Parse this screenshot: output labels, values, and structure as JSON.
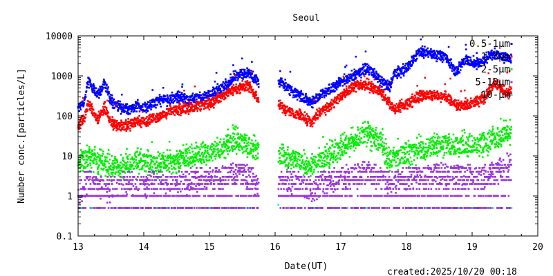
{
  "chart_data": {
    "type": "scatter",
    "title": "Seoul",
    "xlabel": "Date(UT)",
    "ylabel": "Number conc.[particles/L]",
    "xlim": [
      13,
      20
    ],
    "ylim": [
      0.1,
      10000
    ],
    "yscale": "log",
    "x_ticks": [
      13,
      14,
      15,
      16,
      17,
      18,
      19,
      20
    ],
    "y_ticks": [
      {
        "value": 0.1,
        "label": "0.1"
      },
      {
        "value": 1,
        "label": "1"
      },
      {
        "value": 10,
        "label": "10"
      },
      {
        "value": 100,
        "label": "100"
      },
      {
        "value": 1000,
        "label": "1000"
      },
      {
        "value": 10000,
        "label": "10000"
      }
    ],
    "legend_position": "top-right",
    "gaps": [
      [
        15.75,
        16.05
      ]
    ],
    "series": [
      {
        "name": "0.5-1μm",
        "color": "#0000ff",
        "points": [
          [
            13.0,
            150
          ],
          [
            13.1,
            250
          ],
          [
            13.15,
            800
          ],
          [
            13.2,
            600
          ],
          [
            13.3,
            300
          ],
          [
            13.4,
            700
          ],
          [
            13.5,
            250
          ],
          [
            13.6,
            170
          ],
          [
            13.8,
            140
          ],
          [
            13.9,
            180
          ],
          [
            14.0,
            160
          ],
          [
            14.1,
            200
          ],
          [
            14.2,
            230
          ],
          [
            14.3,
            250
          ],
          [
            14.4,
            260
          ],
          [
            14.5,
            300
          ],
          [
            14.7,
            250
          ],
          [
            14.9,
            300
          ],
          [
            15.0,
            350
          ],
          [
            15.2,
            500
          ],
          [
            15.4,
            1000
          ],
          [
            15.6,
            1200
          ],
          [
            15.75,
            700
          ],
          [
            16.05,
            800
          ],
          [
            16.2,
            500
          ],
          [
            16.4,
            300
          ],
          [
            16.55,
            200
          ],
          [
            16.7,
            350
          ],
          [
            16.9,
            500
          ],
          [
            17.0,
            700
          ],
          [
            17.2,
            1000
          ],
          [
            17.4,
            1600
          ],
          [
            17.6,
            800
          ],
          [
            17.75,
            500
          ],
          [
            17.8,
            1100
          ],
          [
            18.0,
            1500
          ],
          [
            18.2,
            4000
          ],
          [
            18.4,
            3500
          ],
          [
            18.6,
            3000
          ],
          [
            18.75,
            1200
          ],
          [
            18.9,
            2500
          ],
          [
            19.1,
            2000
          ],
          [
            19.3,
            3500
          ],
          [
            19.5,
            3000
          ],
          [
            19.6,
            2800
          ]
        ]
      },
      {
        "name": "1-3μm",
        "color": "#ff0000",
        "points": [
          [
            13.0,
            60
          ],
          [
            13.1,
            90
          ],
          [
            13.15,
            200
          ],
          [
            13.2,
            150
          ],
          [
            13.3,
            80
          ],
          [
            13.4,
            170
          ],
          [
            13.5,
            70
          ],
          [
            13.6,
            55
          ],
          [
            13.8,
            60
          ],
          [
            13.9,
            75
          ],
          [
            14.0,
            70
          ],
          [
            14.1,
            85
          ],
          [
            14.2,
            90
          ],
          [
            14.3,
            100
          ],
          [
            14.4,
            140
          ],
          [
            14.6,
            150
          ],
          [
            14.8,
            170
          ],
          [
            15.0,
            200
          ],
          [
            15.2,
            300
          ],
          [
            15.4,
            500
          ],
          [
            15.6,
            550
          ],
          [
            15.75,
            250
          ],
          [
            16.05,
            200
          ],
          [
            16.2,
            130
          ],
          [
            16.4,
            100
          ],
          [
            16.55,
            70
          ],
          [
            16.7,
            130
          ],
          [
            16.9,
            200
          ],
          [
            17.0,
            300
          ],
          [
            17.2,
            550
          ],
          [
            17.4,
            600
          ],
          [
            17.6,
            400
          ],
          [
            17.75,
            200
          ],
          [
            17.8,
            150
          ],
          [
            18.0,
            200
          ],
          [
            18.2,
            300
          ],
          [
            18.4,
            350
          ],
          [
            18.6,
            300
          ],
          [
            18.8,
            170
          ],
          [
            19.0,
            200
          ],
          [
            19.2,
            300
          ],
          [
            19.35,
            650
          ],
          [
            19.5,
            400
          ],
          [
            19.6,
            380
          ]
        ]
      },
      {
        "name": "2-5μm",
        "color": "#00ee00",
        "points": [
          [
            13.0,
            6
          ],
          [
            13.1,
            8
          ],
          [
            13.2,
            10
          ],
          [
            13.3,
            7
          ],
          [
            13.5,
            5
          ],
          [
            13.7,
            6
          ],
          [
            13.9,
            8
          ],
          [
            14.0,
            7
          ],
          [
            14.2,
            6
          ],
          [
            14.4,
            7
          ],
          [
            14.6,
            9
          ],
          [
            14.8,
            10
          ],
          [
            15.0,
            12
          ],
          [
            15.2,
            18
          ],
          [
            15.4,
            25
          ],
          [
            15.6,
            18
          ],
          [
            15.75,
            13
          ],
          [
            16.05,
            11
          ],
          [
            16.2,
            9
          ],
          [
            16.4,
            7
          ],
          [
            16.55,
            5
          ],
          [
            16.7,
            8
          ],
          [
            16.9,
            12
          ],
          [
            17.0,
            15
          ],
          [
            17.2,
            25
          ],
          [
            17.4,
            35
          ],
          [
            17.6,
            20
          ],
          [
            17.75,
            8
          ],
          [
            17.9,
            10
          ],
          [
            18.1,
            12
          ],
          [
            18.3,
            15
          ],
          [
            18.5,
            20
          ],
          [
            18.7,
            18
          ],
          [
            18.9,
            20
          ],
          [
            19.1,
            18
          ],
          [
            19.3,
            25
          ],
          [
            19.5,
            35
          ],
          [
            19.6,
            40
          ]
        ]
      },
      {
        "name": "5-10μm",
        "color": "#9933dd",
        "points": [
          [
            13.0,
            1
          ],
          [
            13.1,
            2
          ],
          [
            13.2,
            3
          ],
          [
            13.3,
            2
          ],
          [
            13.5,
            1.5
          ],
          [
            13.7,
            2
          ],
          [
            13.9,
            2
          ],
          [
            14.0,
            2
          ],
          [
            14.2,
            3
          ],
          [
            14.4,
            2
          ],
          [
            14.6,
            2.5
          ],
          [
            14.8,
            3
          ],
          [
            15.0,
            3
          ],
          [
            15.2,
            4
          ],
          [
            15.4,
            5
          ],
          [
            15.6,
            4
          ],
          [
            15.75,
            2
          ],
          [
            16.05,
            2
          ],
          [
            16.2,
            3
          ],
          [
            16.4,
            2
          ],
          [
            16.55,
            1.5
          ],
          [
            16.7,
            2.5
          ],
          [
            16.9,
            3
          ],
          [
            17.0,
            3.5
          ],
          [
            17.2,
            5
          ],
          [
            17.4,
            6
          ],
          [
            17.6,
            4
          ],
          [
            17.75,
            2
          ],
          [
            17.9,
            3
          ],
          [
            18.1,
            3.5
          ],
          [
            18.3,
            4
          ],
          [
            18.5,
            5
          ],
          [
            18.7,
            4
          ],
          [
            18.9,
            4.5
          ],
          [
            19.1,
            3.5
          ],
          [
            19.3,
            5
          ],
          [
            19.5,
            8
          ],
          [
            19.6,
            10
          ]
        ]
      },
      {
        "name": "10-μm",
        "color": "#00eeee",
        "points": [
          [
            13.05,
            0.5
          ],
          [
            13.2,
            0.5
          ],
          [
            14.2,
            0.5
          ],
          [
            14.35,
            0.5
          ],
          [
            15.0,
            0.5
          ],
          [
            15.6,
            0.5
          ],
          [
            16.05,
            0.6
          ],
          [
            16.6,
            0.5
          ],
          [
            17.1,
            0.5
          ],
          [
            17.4,
            0.5
          ],
          [
            18.1,
            0.5
          ],
          [
            18.3,
            0.5
          ],
          [
            18.8,
            0.5
          ],
          [
            19.0,
            0.5
          ],
          [
            19.3,
            0.5
          ],
          [
            19.6,
            0.5
          ]
        ]
      }
    ]
  },
  "footer": {
    "created": "created:2025/10/20 00:18"
  }
}
